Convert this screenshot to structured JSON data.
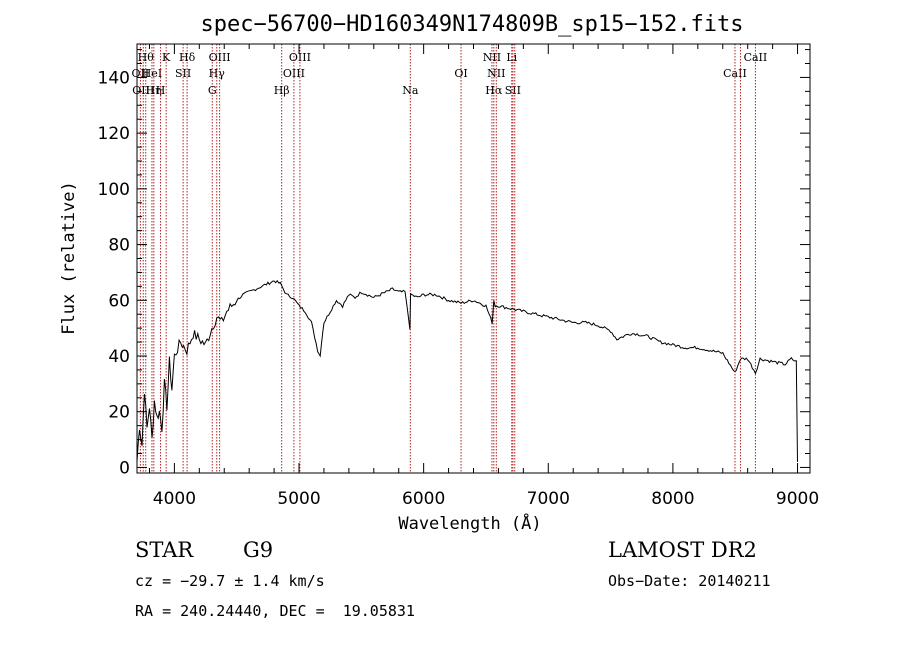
{
  "chart_data": {
    "type": "line",
    "title": "spec−56700−HD160349N174809B_sp15−152.fits",
    "xlabel": "Wavelength (Å)",
    "ylabel": "Flux (relative)",
    "xlim": [
      3700,
      9100
    ],
    "ylim": [
      -2,
      152
    ],
    "xticks": [
      4000,
      5000,
      6000,
      7000,
      8000,
      9000
    ],
    "yticks": [
      0,
      20,
      40,
      60,
      80,
      100,
      120,
      140
    ],
    "grid": false,
    "series": [
      {
        "x": [
          3700,
          3720,
          3740,
          3760,
          3780,
          3800,
          3820,
          3840,
          3860,
          3880,
          3900,
          3920,
          3940,
          3960,
          3980,
          4000,
          4050,
          4100,
          4150,
          4200,
          4250,
          4300,
          4340,
          4380,
          4420,
          4460,
          4500,
          4550,
          4600,
          4650,
          4700,
          4750,
          4800,
          4850,
          4900,
          4950,
          5000,
          5050,
          5100,
          5150,
          5170,
          5180,
          5200,
          5250,
          5300,
          5350,
          5400,
          5450,
          5500,
          5550,
          5600,
          5650,
          5700,
          5750,
          5800,
          5850,
          5890,
          5895,
          5900,
          5950,
          6000,
          6100,
          6200,
          6300,
          6400,
          6500,
          6550,
          6563,
          6575,
          6600,
          6700,
          6800,
          6900,
          7000,
          7100,
          7200,
          7300,
          7400,
          7500,
          7550,
          7600,
          7650,
          7700,
          7800,
          7900,
          8000,
          8100,
          8200,
          8300,
          8400,
          8498,
          8542,
          8600,
          8662,
          8700,
          8800,
          8900,
          8950,
          8990,
          9000
        ],
        "values": [
          2,
          15,
          8,
          28,
          14,
          22,
          10,
          24,
          18,
          20,
          14,
          30,
          22,
          38,
          28,
          40,
          45,
          42,
          48,
          46,
          44,
          50,
          54,
          52,
          56,
          58,
          60,
          62,
          63,
          64,
          65,
          66,
          67,
          66,
          62,
          61,
          58,
          56,
          52,
          42,
          40,
          45,
          52,
          56,
          60,
          58,
          62,
          61,
          63,
          62,
          61,
          62,
          63,
          64,
          63,
          63,
          50,
          62,
          62,
          61,
          62,
          62,
          60,
          59,
          60,
          58,
          52,
          60,
          58,
          58,
          57,
          56,
          55,
          54,
          53,
          52,
          52,
          51,
          49,
          46,
          47,
          48,
          48,
          47,
          45,
          44,
          43,
          43,
          42,
          41,
          34,
          39,
          39,
          34,
          39,
          38,
          37,
          39,
          38,
          2
        ]
      }
    ],
    "line_markers": [
      {
        "wavelength": 3727,
        "label": "OII",
        "row": 1
      },
      {
        "wavelength": 3750,
        "label": "OIII",
        "row": 2
      },
      {
        "wavelength": 3770,
        "label": "Hθ",
        "row": 0
      },
      {
        "wavelength": 3820,
        "label": "HeI",
        "row": 1
      },
      {
        "wavelength": 3835,
        "label": "Hη",
        "row": 2
      },
      {
        "wavelength": 3889,
        "label": "H",
        "row": 2
      },
      {
        "wavelength": 3934,
        "label": "K",
        "row": 0
      },
      {
        "wavelength": 4070,
        "label": "SII",
        "row": 1
      },
      {
        "wavelength": 4102,
        "label": "Hδ",
        "row": 0
      },
      {
        "wavelength": 4304,
        "label": "G",
        "row": 2
      },
      {
        "wavelength": 4340,
        "label": "Hγ",
        "row": 1
      },
      {
        "wavelength": 4363,
        "label": "OIII",
        "row": 0
      },
      {
        "wavelength": 4861,
        "label": "Hβ",
        "row": 2
      },
      {
        "wavelength": 4959,
        "label": "OIII",
        "row": 1
      },
      {
        "wavelength": 5007,
        "label": "OIII",
        "row": 0
      },
      {
        "wavelength": 5893,
        "label": "Na",
        "row": 2
      },
      {
        "wavelength": 6300,
        "label": "OI",
        "row": 1
      },
      {
        "wavelength": 6548,
        "label": "NII",
        "row": 0
      },
      {
        "wavelength": 6563,
        "label": "Hα",
        "row": 2
      },
      {
        "wavelength": 6583,
        "label": "NII",
        "row": 1
      },
      {
        "wavelength": 6707,
        "label": "Li",
        "row": 0
      },
      {
        "wavelength": 6716,
        "label": "SII",
        "row": 2
      },
      {
        "wavelength": 6731,
        "label": "",
        "row": 2
      },
      {
        "wavelength": 8498,
        "label": "CaII",
        "row": 1
      },
      {
        "wavelength": 8542,
        "label": "",
        "row": 1
      },
      {
        "wavelength": 8662,
        "label": "CaII",
        "row": 0
      }
    ],
    "marker_color": "#b22222"
  },
  "info": {
    "class_label": "STAR",
    "subclass": "G9",
    "survey": "LAMOST DR2",
    "cz": "cz = −29.7 ± 1.4 km/s",
    "obs_date": "Obs−Date: 20140211",
    "coords": "RA = 240.24440, DEC =  19.05831"
  }
}
